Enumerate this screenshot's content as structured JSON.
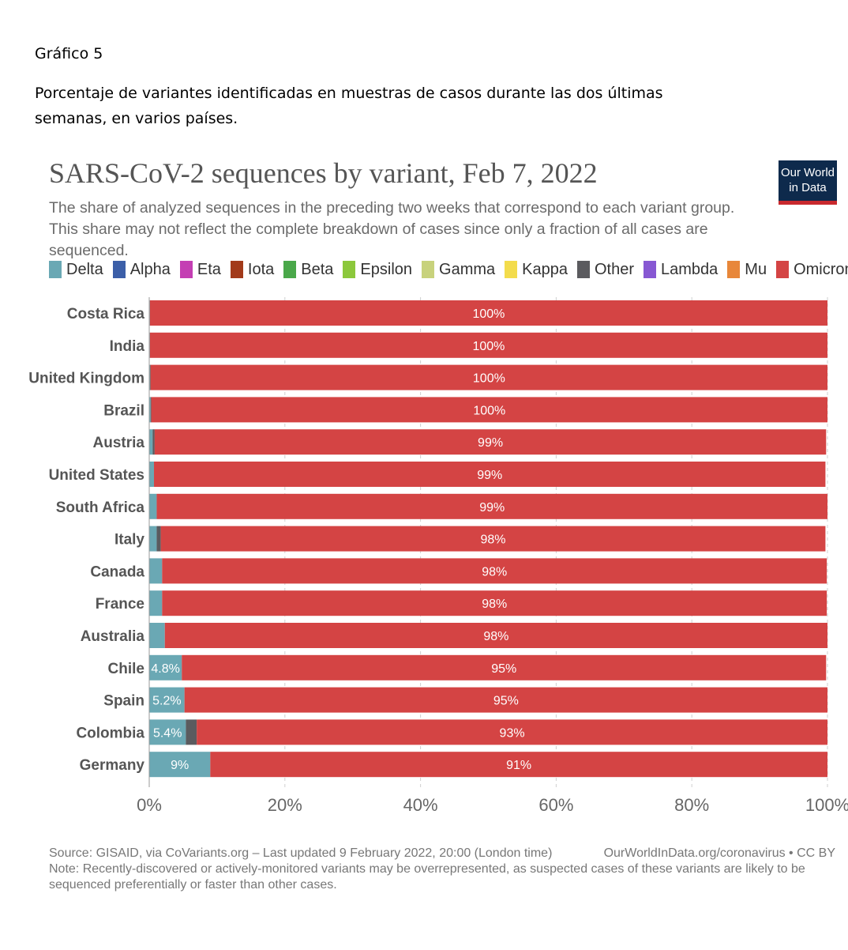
{
  "document": {
    "figure_label": "Gráfico 5",
    "caption": "Porcentaje de variantes identificadas en muestras de casos durante las dos últimas semanas, en varios países."
  },
  "logo": {
    "line1": "Our World",
    "line2": "in Data"
  },
  "colors": {
    "Delta": "#6aa8b4",
    "Alpha": "#3c5fa8",
    "Eta": "#c43fb3",
    "Iota": "#a23a1a",
    "Beta": "#4aa84a",
    "Epsilon": "#8cc83c",
    "Gamma": "#c8d27c",
    "Kappa": "#f3dc4c",
    "Other": "#5b5b5f",
    "Lambda": "#8758d3",
    "Mu": "#e8873a",
    "Omicron": "#d44444"
  },
  "chart_data": {
    "type": "bar",
    "orientation": "horizontal",
    "stacked": true,
    "title": "SARS-CoV-2 sequences by variant, Feb 7, 2022",
    "subtitle": "The share of analyzed sequences in the preceding two weeks that correspond to each variant group. This share may not reflect the complete breakdown of cases since only a fraction of all cases are sequenced.",
    "legend": [
      "Delta",
      "Alpha",
      "Eta",
      "Iota",
      "Beta",
      "Epsilon",
      "Gamma",
      "Kappa",
      "Other",
      "Lambda",
      "Mu",
      "Omicron"
    ],
    "legend_position": "top",
    "categories": [
      "Costa Rica",
      "India",
      "United Kingdom",
      "Brazil",
      "Austria",
      "United States",
      "South Africa",
      "Italy",
      "Canada",
      "France",
      "Australia",
      "Chile",
      "Spain",
      "Colombia",
      "Germany"
    ],
    "series": [
      {
        "name": "Delta",
        "values": [
          0.1,
          0.1,
          0.1,
          0.2,
          0.5,
          0.7,
          1.1,
          1.1,
          1.9,
          1.9,
          2.3,
          4.8,
          5.2,
          5.4,
          9
        ]
      },
      {
        "name": "Other",
        "values": [
          0,
          0,
          0.1,
          0.1,
          0.3,
          0,
          0,
          0.6,
          0,
          0,
          0,
          0,
          0,
          1.6,
          0
        ]
      },
      {
        "name": "Omicron",
        "values": [
          100,
          100,
          100,
          100,
          99,
          99,
          99,
          98,
          98,
          98,
          98,
          95,
          95,
          93,
          91
        ]
      }
    ],
    "value_labels": {
      "Omicron": [
        "100%",
        "100%",
        "100%",
        "100%",
        "99%",
        "99%",
        "99%",
        "98%",
        "98%",
        "98%",
        "98%",
        "95%",
        "95%",
        "93%",
        "91%"
      ],
      "Delta": [
        "",
        "",
        "",
        "",
        "",
        "",
        "",
        "",
        "",
        "",
        "",
        "4.8%",
        "5.2%",
        "5.4%",
        "9%"
      ]
    },
    "xlim": [
      0,
      100
    ],
    "x_ticks": [
      "0%",
      "20%",
      "40%",
      "60%",
      "80%",
      "100%"
    ],
    "grid": "vertical dashed"
  },
  "footer": {
    "source": "Source: GISAID, via CoVariants.org – Last updated 9 February 2022, 20:00 (London time)",
    "link": "OurWorldInData.org/coronavirus • CC BY",
    "note": "Note: Recently-discovered or actively-monitored variants may be overrepresented, as suspected cases of these variants are likely to be sequenced preferentially or faster than other cases."
  }
}
